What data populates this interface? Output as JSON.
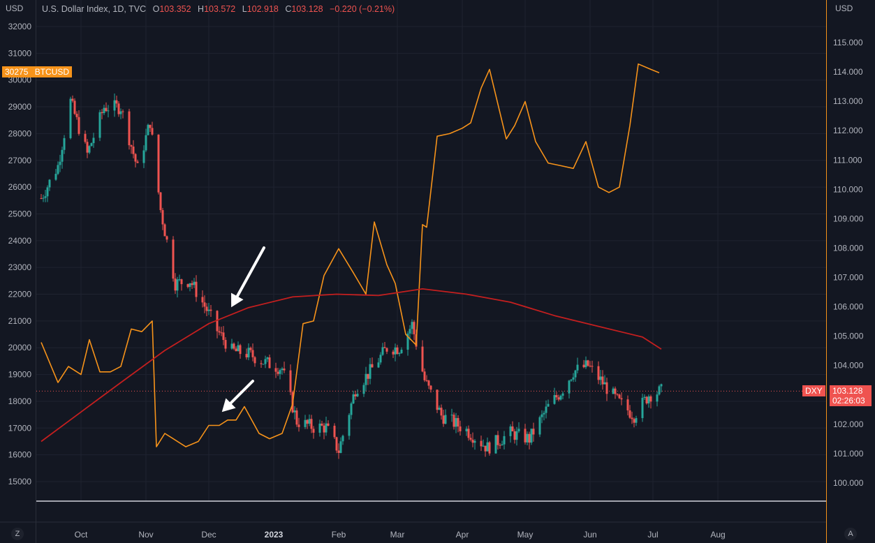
{
  "header": {
    "symbol": "U.S. Dollar Index, 1D, TVC",
    "open_label": "O",
    "open": "103.352",
    "high_label": "H",
    "high": "103.572",
    "low_label": "L",
    "low": "102.918",
    "close_label": "C",
    "close": "103.128",
    "change": "−0.220 (−0.21%)"
  },
  "left_unit": "USD",
  "right_unit": "USD",
  "btc_badge": {
    "value": "30275",
    "symbol": "BTCUSD",
    "color": "#f7931a"
  },
  "dxy_badge": {
    "symbol": "DXY",
    "value": "103.128",
    "countdown": "02:26:03",
    "color": "#ef5350"
  },
  "corner_left": "Z",
  "corner_right": "A",
  "colors": {
    "background": "#131722",
    "up": "#26a69a",
    "down": "#ef5350",
    "btc_line": "#f7931a",
    "ma_line": "#c41f1f",
    "arrow": "#ffffff"
  },
  "chart_data": {
    "type": "line",
    "x_ticks": [
      "Oct",
      "Nov",
      "Dec",
      "2023",
      "Feb",
      "Mar",
      "Apr",
      "May",
      "Jun",
      "Jul",
      "Aug"
    ],
    "left_axis": {
      "ticks": [
        "32000",
        "31000",
        "30000",
        "29000",
        "28000",
        "27000",
        "26000",
        "25000",
        "24000",
        "23000",
        "22000",
        "21000",
        "20000",
        "19000",
        "18000",
        "17000",
        "16000",
        "15000"
      ]
    },
    "right_axis": {
      "ticks": [
        "115.000",
        "114.000",
        "113.000",
        "112.000",
        "111.000",
        "110.000",
        "109.000",
        "108.000",
        "107.000",
        "106.000",
        "105.000",
        "104.000",
        "103.000",
        "102.000",
        "101.000",
        "100.000"
      ]
    },
    "series": [
      {
        "name": "BTCUSD",
        "axis": "left",
        "x": [
          "2022-09-12",
          "2022-09-20",
          "2022-09-25",
          "2022-10-01",
          "2022-10-05",
          "2022-10-10",
          "2022-10-15",
          "2022-10-20",
          "2022-10-25",
          "2022-10-30",
          "2022-11-04",
          "2022-11-06",
          "2022-11-10",
          "2022-11-14",
          "2022-11-20",
          "2022-11-26",
          "2022-12-01",
          "2022-12-06",
          "2022-12-10",
          "2022-12-14",
          "2022-12-18",
          "2022-12-25",
          "2022-12-30",
          "2023-01-05",
          "2023-01-10",
          "2023-01-15",
          "2023-01-20",
          "2023-01-25",
          "2023-02-01",
          "2023-02-08",
          "2023-02-14",
          "2023-02-18",
          "2023-02-24",
          "2023-02-28",
          "2023-03-05",
          "2023-03-10",
          "2023-03-13",
          "2023-03-15",
          "2023-03-20",
          "2023-03-26",
          "2023-04-01",
          "2023-04-05",
          "2023-04-10",
          "2023-04-14",
          "2023-04-18",
          "2023-04-22",
          "2023-04-26",
          "2023-05-01",
          "2023-05-06",
          "2023-05-12",
          "2023-05-18",
          "2023-05-24",
          "2023-05-30",
          "2023-06-05",
          "2023-06-10",
          "2023-06-15",
          "2023-06-20",
          "2023-06-24",
          "2023-06-30",
          "2023-07-04"
        ],
        "values": [
          20200,
          18700,
          19300,
          19000,
          20300,
          19100,
          19100,
          19300,
          20700,
          20600,
          21000,
          16300,
          16800,
          16600,
          16300,
          16500,
          17100,
          17100,
          17300,
          17300,
          17800,
          16800,
          16600,
          16800,
          17900,
          20900,
          21000,
          22700,
          23700,
          22800,
          22000,
          24700,
          23100,
          22400,
          20500,
          20100,
          24600,
          24500,
          27900,
          28000,
          28200,
          28400,
          29700,
          30400,
          29100,
          27800,
          28300,
          29200,
          27700,
          26900,
          26800,
          26700,
          27700,
          26000,
          25800,
          26000,
          28300,
          30600,
          30400,
          30275
        ]
      },
      {
        "name": "DXY",
        "axis": "right",
        "x": [
          "2022-09-12",
          "2022-09-20",
          "2022-09-26",
          "2022-10-04",
          "2022-10-12",
          "2022-10-20",
          "2022-10-28",
          "2022-11-03",
          "2022-11-08",
          "2022-11-15",
          "2022-11-22",
          "2022-11-30",
          "2022-12-05",
          "2022-12-12",
          "2022-12-20",
          "2022-12-28",
          "2023-01-05",
          "2023-01-12",
          "2023-01-20",
          "2023-01-26",
          "2023-02-01",
          "2023-02-09",
          "2023-02-16",
          "2023-02-24",
          "2023-03-02",
          "2023-03-08",
          "2023-03-14",
          "2023-03-22",
          "2023-04-03",
          "2023-04-13",
          "2023-04-24",
          "2023-05-03",
          "2023-05-12",
          "2023-05-18",
          "2023-05-24",
          "2023-05-31",
          "2023-06-06",
          "2023-06-14",
          "2023-06-22",
          "2023-06-29",
          "2023-07-05"
        ],
        "values": [
          109.7,
          110.8,
          113.0,
          111.2,
          112.8,
          112.8,
          110.7,
          112.3,
          109.3,
          106.8,
          106.9,
          105.9,
          105.2,
          104.5,
          104.4,
          104.1,
          103.9,
          102.1,
          101.9,
          101.9,
          101.1,
          103.2,
          103.8,
          104.6,
          104.6,
          105.4,
          103.5,
          102.3,
          101.8,
          101.2,
          101.7,
          101.5,
          102.6,
          103.1,
          103.8,
          104.0,
          103.5,
          102.8,
          102.3,
          103.0,
          103.128
        ]
      },
      {
        "name": "MA",
        "axis": "left",
        "x": [
          "2022-09-12",
          "2022-10-01",
          "2022-10-20",
          "2022-11-10",
          "2022-12-01",
          "2022-12-20",
          "2023-01-10",
          "2023-01-31",
          "2023-02-20",
          "2023-03-13",
          "2023-04-03",
          "2023-04-24",
          "2023-05-15",
          "2023-06-05",
          "2023-06-26",
          "2023-07-05"
        ],
        "values": [
          16500,
          17600,
          18700,
          19900,
          20900,
          21500,
          21900,
          22000,
          21950,
          22200,
          22000,
          21700,
          21200,
          20800,
          20400,
          19950
        ]
      }
    ],
    "annotations": [
      "down-arrow",
      "down-arrow"
    ]
  }
}
